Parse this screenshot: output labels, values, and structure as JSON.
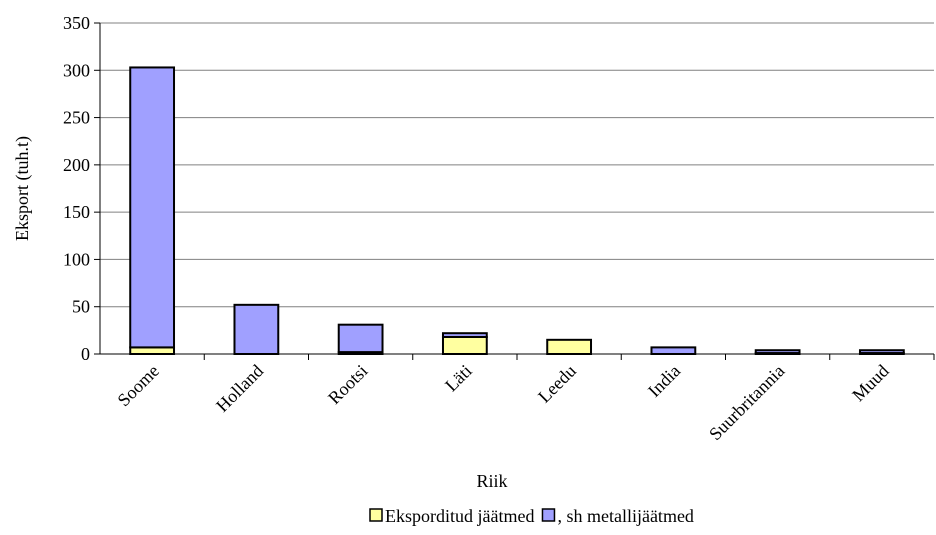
{
  "chart_data": {
    "type": "bar",
    "stacked": true,
    "title": "",
    "xlabel": "Riik",
    "ylabel": "Eksport (tuh.t)",
    "ylim": [
      0,
      350
    ],
    "yticks": [
      0,
      50,
      100,
      150,
      200,
      250,
      300,
      350
    ],
    "grid": true,
    "legend_position": "bottom",
    "categories": [
      "Soome",
      "Holland",
      "Rootsi",
      "Läti",
      "Leedu",
      "India",
      "Suurbritannia",
      "Muud"
    ],
    "series": [
      {
        "name": "Eksporditud jäätmed",
        "color": "#ffffa0",
        "values": [
          7,
          0,
          2,
          18,
          15,
          0,
          1,
          1
        ]
      },
      {
        "name": ", sh metallijäätmed",
        "color": "#a0a0ff",
        "values": [
          296,
          52,
          29,
          4,
          0,
          7,
          3,
          3
        ]
      }
    ]
  }
}
